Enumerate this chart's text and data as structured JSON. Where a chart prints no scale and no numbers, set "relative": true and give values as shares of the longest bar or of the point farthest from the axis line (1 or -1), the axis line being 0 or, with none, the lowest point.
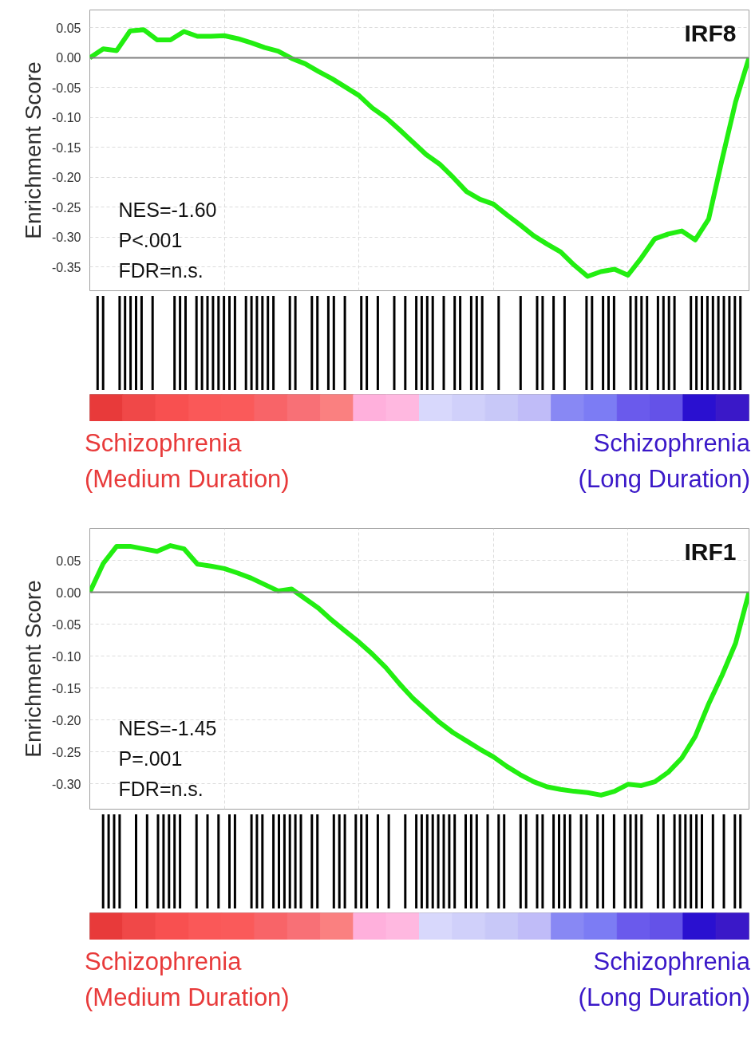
{
  "chart_data": [
    {
      "type": "line",
      "title": "IRF8",
      "ylabel": "Enrichment Score",
      "annotations": [
        "NES=-1.60",
        "P<.001",
        "FDR=n.s."
      ],
      "tick_labels": "y",
      "grid": true,
      "ylim": [
        -0.39,
        0.08
      ],
      "yticks": [
        {
          "value": 0.05,
          "label": "0.05"
        },
        {
          "value": 0,
          "label": "0.00"
        },
        {
          "value": -0.05,
          "label": "-0.05"
        },
        {
          "value": -0.1,
          "label": "-0.10"
        },
        {
          "value": -0.15,
          "label": "-0.15"
        },
        {
          "value": -0.2,
          "label": "-0.20"
        },
        {
          "value": -0.25,
          "label": "-0.25"
        },
        {
          "value": -0.3,
          "label": "-0.30"
        },
        {
          "value": -0.35,
          "label": "-0.35"
        }
      ],
      "ref_lines": [
        {
          "axis": "y",
          "value": 0,
          "color": "#808080"
        }
      ],
      "categories": [
        null,
        null,
        null,
        null,
        null,
        null,
        null,
        null,
        null,
        null,
        null,
        null,
        null,
        null,
        null,
        null,
        null,
        null,
        null,
        null,
        null,
        null,
        null,
        null,
        null,
        null,
        null,
        null,
        null,
        null,
        null,
        null,
        null,
        null,
        null,
        null,
        null,
        null,
        null,
        null,
        null,
        null,
        null,
        null,
        null,
        null,
        null,
        null,
        null,
        null
      ],
      "series": [
        {
          "color": "#22ee11",
          "values": [
            0.0,
            0.015,
            0.012,
            0.045,
            0.047,
            0.03,
            0.03,
            0.044,
            0.036,
            0.036,
            0.037,
            0.032,
            0.025,
            0.017,
            0.011,
            -0.001,
            -0.01,
            -0.023,
            -0.035,
            -0.049,
            -0.063,
            -0.084,
            -0.1,
            -0.12,
            -0.141,
            -0.162,
            -0.178,
            -0.2,
            -0.224,
            -0.237,
            -0.245,
            -0.263,
            -0.28,
            -0.298,
            -0.312,
            -0.325,
            -0.347,
            -0.366,
            -0.358,
            -0.354,
            -0.364,
            -0.335,
            -0.303,
            -0.295,
            -0.29,
            -0.305,
            -0.27,
            -0.17,
            -0.074,
            0.0
          ]
        }
      ]
    },
    {
      "type": "bar",
      "relative": true,
      "annotations": [
        "Schizophrenia\n(Medium Duration)",
        "Schizophrenia\n(Long Duration)"
      ],
      "categories": [
        null,
        null,
        null,
        null,
        null,
        null,
        null,
        null,
        null,
        null,
        null,
        null,
        null,
        null,
        null,
        null,
        null,
        null,
        null,
        null
      ],
      "values": [
        1,
        1,
        1,
        1,
        1,
        1,
        1,
        1,
        1,
        1,
        1,
        1,
        1,
        1,
        1,
        1,
        1,
        1,
        1,
        1
      ],
      "colors": [
        "#e83a3a",
        "#f04848",
        "#f85050",
        "#fa5858",
        "#fa5a5a",
        "#f86468",
        "#f87076",
        "#fa8080",
        "#ffb0dc",
        "#ffb8e0",
        "#d8d8fc",
        "#d0d0fa",
        "#c8c8f8",
        "#c0bcf8",
        "#8888f4",
        "#7c7cf4",
        "#6a5aec",
        "#6452e8",
        "#2a10d0",
        "#3a18c8"
      ]
    },
    {
      "type": "line",
      "title": "IRF1",
      "ylabel": "Enrichment Score",
      "annotations": [
        "NES=-1.45",
        "P=.001",
        "FDR=n.s."
      ],
      "tick_labels": "y",
      "grid": true,
      "ylim": [
        -0.34,
        0.1
      ],
      "yticks": [
        {
          "value": 0.05,
          "label": "0.05"
        },
        {
          "value": 0,
          "label": "0.00"
        },
        {
          "value": -0.05,
          "label": "-0.05"
        },
        {
          "value": -0.1,
          "label": "-0.10"
        },
        {
          "value": -0.15,
          "label": "-0.15"
        },
        {
          "value": -0.2,
          "label": "-0.20"
        },
        {
          "value": -0.25,
          "label": "-0.25"
        },
        {
          "value": -0.3,
          "label": "-0.30"
        }
      ],
      "ref_lines": [
        {
          "axis": "y",
          "value": 0,
          "color": "#808080"
        }
      ],
      "categories": [
        null,
        null,
        null,
        null,
        null,
        null,
        null,
        null,
        null,
        null,
        null,
        null,
        null,
        null,
        null,
        null,
        null,
        null,
        null,
        null,
        null,
        null,
        null,
        null,
        null,
        null,
        null,
        null,
        null,
        null,
        null,
        null,
        null,
        null,
        null,
        null,
        null,
        null,
        null,
        null,
        null,
        null,
        null,
        null,
        null,
        null,
        null,
        null,
        null,
        null
      ],
      "series": [
        {
          "color": "#22ee11",
          "values": [
            0.0,
            0.045,
            0.072,
            0.072,
            0.068,
            0.064,
            0.073,
            0.068,
            0.044,
            0.041,
            0.037,
            0.03,
            0.022,
            0.012,
            0.002,
            0.005,
            -0.01,
            -0.025,
            -0.044,
            -0.061,
            -0.078,
            -0.097,
            -0.118,
            -0.143,
            -0.166,
            -0.185,
            -0.204,
            -0.22,
            -0.233,
            -0.246,
            -0.258,
            -0.273,
            -0.286,
            -0.297,
            -0.305,
            -0.309,
            -0.312,
            -0.314,
            -0.318,
            -0.312,
            -0.301,
            -0.303,
            -0.297,
            -0.282,
            -0.26,
            -0.226,
            -0.175,
            -0.13,
            -0.08,
            0.0
          ]
        }
      ]
    },
    {
      "type": "bar",
      "relative": true,
      "annotations": [
        "Schizophrenia\n(Medium Duration)",
        "Schizophrenia\n(Long Duration)"
      ],
      "categories": [
        null,
        null,
        null,
        null,
        null,
        null,
        null,
        null,
        null,
        null,
        null,
        null,
        null,
        null,
        null,
        null,
        null,
        null,
        null,
        null
      ],
      "values": [
        1,
        1,
        1,
        1,
        1,
        1,
        1,
        1,
        1,
        1,
        1,
        1,
        1,
        1,
        1,
        1,
        1,
        1,
        1,
        1
      ],
      "colors": [
        "#e83a3a",
        "#f04848",
        "#f85050",
        "#fa5858",
        "#fa5a5a",
        "#f86468",
        "#f87076",
        "#fa8080",
        "#ffb0dc",
        "#ffb8e0",
        "#d8d8fc",
        "#d0d0fa",
        "#c8c8f8",
        "#c0bcf8",
        "#8888f4",
        "#7c7cf4",
        "#6a5aec",
        "#6452e8",
        "#2a10d0",
        "#3a18c8"
      ]
    }
  ]
}
